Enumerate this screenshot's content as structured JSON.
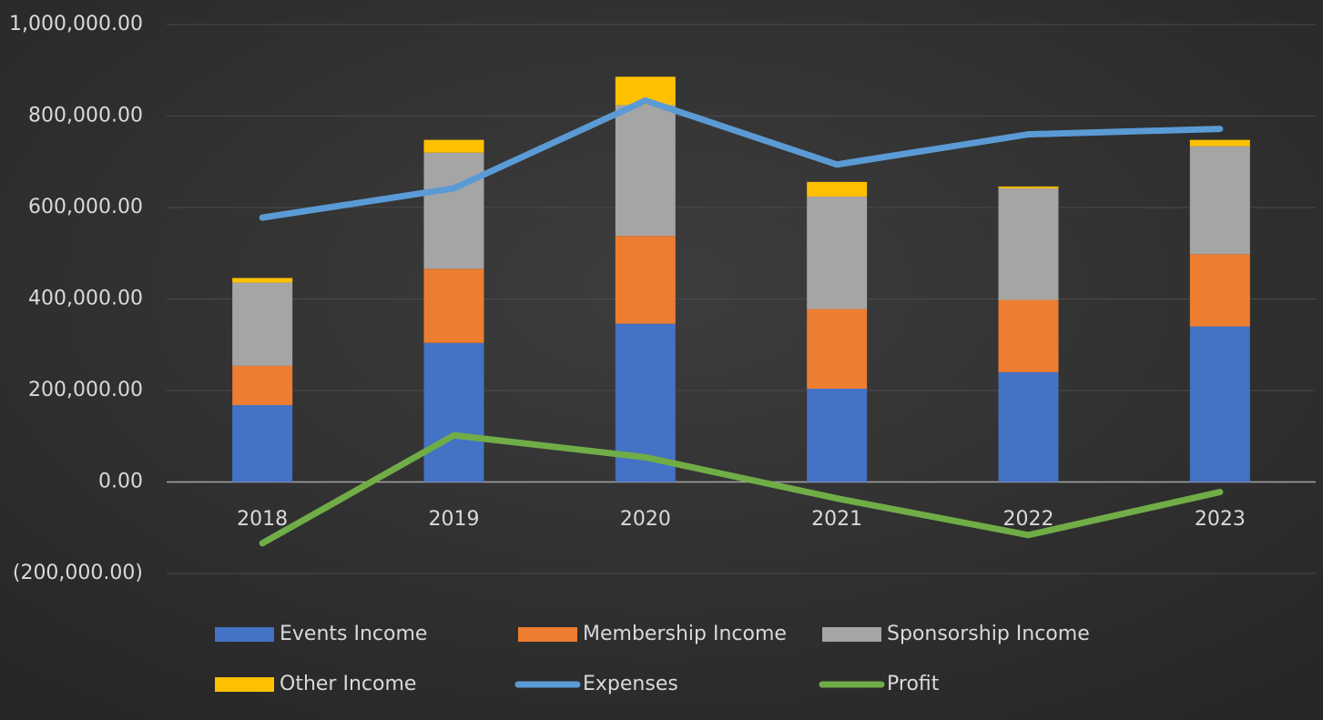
{
  "chart_data": {
    "type": "bar",
    "stacked": true,
    "categories": [
      "2018",
      "2019",
      "2020",
      "2021",
      "2022",
      "2023"
    ],
    "series": [
      {
        "name": "Events Income",
        "type": "bar",
        "color": "#4472c4",
        "values": [
          168000,
          304000,
          346000,
          204000,
          240000,
          340000
        ]
      },
      {
        "name": "Membership Income",
        "type": "bar",
        "color": "#ed7d31",
        "values": [
          86000,
          162000,
          192000,
          174000,
          158000,
          158000
        ]
      },
      {
        "name": "Sponsorship Income",
        "type": "bar",
        "color": "#a5a5a5",
        "values": [
          182000,
          254000,
          286000,
          246000,
          244000,
          236000
        ]
      },
      {
        "name": "Other Income",
        "type": "bar",
        "color": "#ffc000",
        "values": [
          10000,
          28000,
          62000,
          32000,
          4000,
          14000
        ]
      },
      {
        "name": "Expenses",
        "type": "line",
        "color": "#5b9bd5",
        "values": [
          578000,
          642000,
          834000,
          694000,
          760000,
          772000
        ]
      },
      {
        "name": "Profit",
        "type": "line",
        "color": "#70ad47",
        "values": [
          -134000,
          102000,
          54000,
          -36000,
          -116000,
          -22000
        ]
      }
    ],
    "ylim": [
      -200000,
      1000000
    ],
    "yticks": [
      {
        "value": -200000,
        "label": "(200,000.00)"
      },
      {
        "value": 0,
        "label": "0.00"
      },
      {
        "value": 200000,
        "label": "200,000.00"
      },
      {
        "value": 400000,
        "label": "400,000.00"
      },
      {
        "value": 600000,
        "label": "600,000.00"
      },
      {
        "value": 800000,
        "label": "800,000.00"
      },
      {
        "value": 1000000,
        "label": "1,000,000.00"
      }
    ],
    "grid": true,
    "legend": "bottom"
  }
}
